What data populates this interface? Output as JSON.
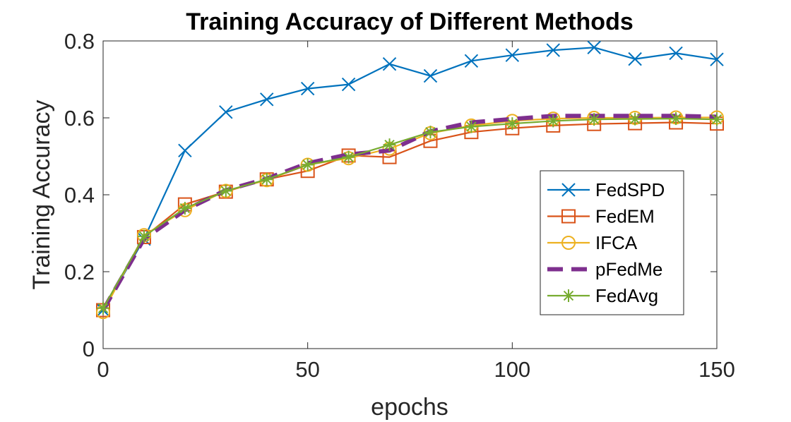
{
  "chart_data": {
    "type": "line",
    "title": "Training Accuracy of Different Methods",
    "xlabel": "epochs",
    "ylabel": "Training Accuracy",
    "xlim": [
      0,
      150
    ],
    "ylim": [
      0,
      0.8
    ],
    "xticks": [
      0,
      50,
      100,
      150
    ],
    "xtick_labels": [
      "0",
      "50",
      "100",
      "150"
    ],
    "yticks": [
      0,
      0.2,
      0.4,
      0.6,
      0.8
    ],
    "ytick_labels": [
      "0",
      "0.2",
      "0.4",
      "0.6",
      "0.8"
    ],
    "grid": false,
    "legend_position": "right",
    "x": [
      0,
      10,
      20,
      30,
      40,
      50,
      60,
      70,
      80,
      90,
      100,
      110,
      120,
      130,
      140,
      150
    ],
    "series": [
      {
        "name": "FedSPD",
        "color": "#0072BD",
        "marker": "x",
        "dash": "solid",
        "values": [
          0.1,
          0.285,
          0.515,
          0.615,
          0.648,
          0.676,
          0.687,
          0.74,
          0.709,
          0.748,
          0.763,
          0.776,
          0.783,
          0.753,
          0.768,
          0.752
        ]
      },
      {
        "name": "FedEM",
        "color": "#D95319",
        "marker": "square",
        "dash": "solid",
        "values": [
          0.1,
          0.29,
          0.375,
          0.408,
          0.44,
          0.462,
          0.502,
          0.498,
          0.54,
          0.563,
          0.573,
          0.58,
          0.584,
          0.586,
          0.588,
          0.585
        ]
      },
      {
        "name": "IFCA",
        "color": "#EDB120",
        "marker": "circle",
        "dash": "solid",
        "values": [
          0.095,
          0.295,
          0.36,
          0.41,
          0.438,
          0.478,
          0.495,
          0.52,
          0.56,
          0.58,
          0.592,
          0.598,
          0.6,
          0.6,
          0.601,
          0.601
        ]
      },
      {
        "name": "pFedMe",
        "color": "#7E2F8E",
        "marker": "none",
        "dash": "dashed",
        "values": [
          0.1,
          0.285,
          0.36,
          0.412,
          0.442,
          0.482,
          0.505,
          0.515,
          0.565,
          0.588,
          0.597,
          0.605,
          0.605,
          0.605,
          0.605,
          0.603
        ]
      },
      {
        "name": "FedAvg",
        "color": "#77AC30",
        "marker": "asterisk",
        "dash": "solid",
        "values": [
          0.105,
          0.292,
          0.365,
          0.41,
          0.44,
          0.478,
          0.498,
          0.53,
          0.563,
          0.577,
          0.585,
          0.592,
          0.596,
          0.597,
          0.598,
          0.596
        ]
      }
    ]
  }
}
